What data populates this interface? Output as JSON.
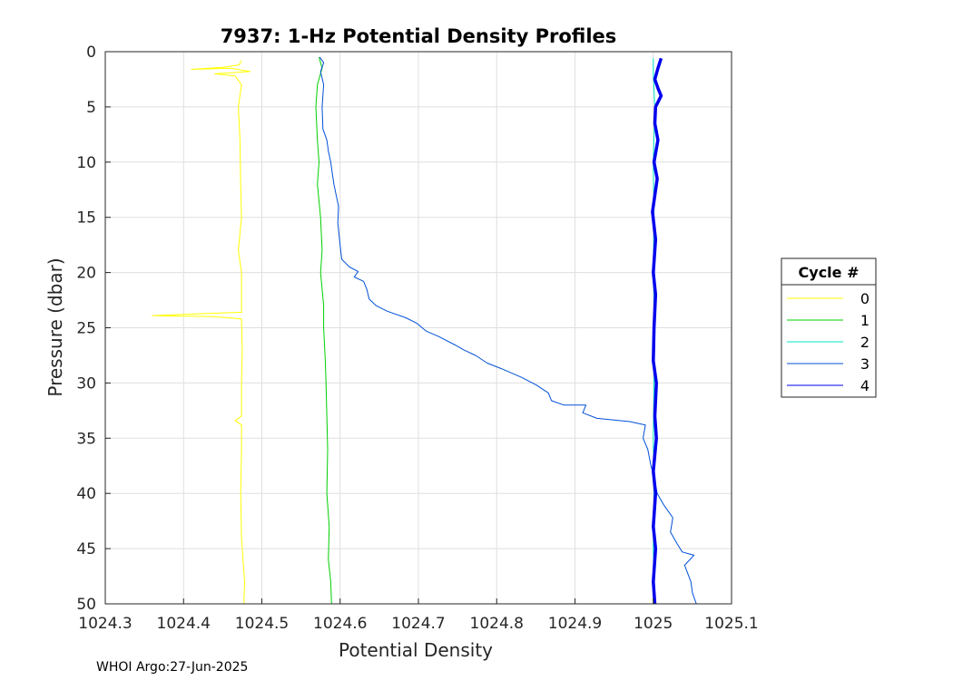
{
  "chart_data": {
    "type": "line",
    "title": "7937: 1-Hz Potential Density Profiles",
    "xlabel": "Potential Density",
    "ylabel": "Pressure (dbar)",
    "xlim": [
      1024.3,
      1025.1
    ],
    "ylim": [
      0,
      50
    ],
    "y_reversed": true,
    "grid": true,
    "x_ticks": [
      "1024.3",
      "1024.4",
      "1024.5",
      "1024.6",
      "1024.7",
      "1024.8",
      "1024.9",
      "1025",
      "1025.1"
    ],
    "y_ticks": [
      "0",
      "5",
      "10",
      "15",
      "20",
      "25",
      "30",
      "35",
      "40",
      "45",
      "50"
    ],
    "legend": {
      "title": "Cycle #",
      "placement": "outside-right"
    },
    "series": [
      {
        "name": "0",
        "color": "#ffff00",
        "points": [
          [
            1024.474,
            0.8
          ],
          [
            1024.471,
            1.2
          ],
          [
            1024.452,
            1.4
          ],
          [
            1024.41,
            1.6
          ],
          [
            1024.46,
            1.5
          ],
          [
            1024.485,
            1.8
          ],
          [
            1024.44,
            2.0
          ],
          [
            1024.466,
            2.2
          ],
          [
            1024.47,
            2.6
          ],
          [
            1024.474,
            3.0
          ],
          [
            1024.47,
            5
          ],
          [
            1024.472,
            8
          ],
          [
            1024.473,
            12
          ],
          [
            1024.474,
            15
          ],
          [
            1024.47,
            18
          ],
          [
            1024.474,
            20
          ],
          [
            1024.474,
            23.6
          ],
          [
            1024.43,
            23.7
          ],
          [
            1024.36,
            23.9
          ],
          [
            1024.44,
            24.0
          ],
          [
            1024.474,
            24.2
          ],
          [
            1024.475,
            27
          ],
          [
            1024.474,
            30
          ],
          [
            1024.474,
            33.0
          ],
          [
            1024.466,
            33.4
          ],
          [
            1024.474,
            33.8
          ],
          [
            1024.474,
            36
          ],
          [
            1024.473,
            40
          ],
          [
            1024.474,
            44
          ],
          [
            1024.476,
            46
          ],
          [
            1024.478,
            48
          ],
          [
            1024.477,
            50
          ]
        ]
      },
      {
        "name": "1",
        "color": "#00d000",
        "points": [
          [
            1024.573,
            0.5
          ],
          [
            1024.577,
            1.5
          ],
          [
            1024.571,
            3
          ],
          [
            1024.569,
            5
          ],
          [
            1024.571,
            8
          ],
          [
            1024.573,
            10
          ],
          [
            1024.571,
            12
          ],
          [
            1024.575,
            15
          ],
          [
            1024.577,
            18
          ],
          [
            1024.575,
            20
          ],
          [
            1024.579,
            23
          ],
          [
            1024.579,
            25
          ],
          [
            1024.581,
            28
          ],
          [
            1024.582,
            30
          ],
          [
            1024.583,
            33
          ],
          [
            1024.584,
            36
          ],
          [
            1024.583,
            40
          ],
          [
            1024.586,
            43
          ],
          [
            1024.585,
            46
          ],
          [
            1024.588,
            48
          ],
          [
            1024.589,
            50
          ]
        ]
      },
      {
        "name": "2",
        "color": "#00e8c8",
        "points": [
          [
            1025.0,
            0.6
          ],
          [
            1025.0,
            2
          ],
          [
            1025.002,
            5
          ],
          [
            1025.0,
            10
          ],
          [
            1025.001,
            15
          ],
          [
            1025.0,
            20
          ],
          [
            1025.002,
            25
          ],
          [
            1025.001,
            30
          ],
          [
            1025.0,
            35
          ],
          [
            1025.001,
            40
          ],
          [
            1025.0,
            45
          ],
          [
            1025.002,
            50
          ]
        ]
      },
      {
        "name": "3",
        "color": "#0050d8",
        "points": [
          [
            1024.574,
            0.5
          ],
          [
            1024.579,
            1.0
          ],
          [
            1024.575,
            1.8
          ],
          [
            1024.579,
            3
          ],
          [
            1024.577,
            5
          ],
          [
            1024.578,
            7
          ],
          [
            1024.583,
            8
          ],
          [
            1024.585,
            9
          ],
          [
            1024.588,
            10
          ],
          [
            1024.59,
            11
          ],
          [
            1024.592,
            12
          ],
          [
            1024.595,
            13
          ],
          [
            1024.598,
            14
          ],
          [
            1024.597,
            15.5
          ],
          [
            1024.6,
            17.5
          ],
          [
            1024.602,
            18.8
          ],
          [
            1024.612,
            19.5
          ],
          [
            1024.623,
            19.9
          ],
          [
            1024.618,
            20.4
          ],
          [
            1024.63,
            20.8
          ],
          [
            1024.634,
            21.5
          ],
          [
            1024.637,
            22.4
          ],
          [
            1024.646,
            23.0
          ],
          [
            1024.66,
            23.5
          ],
          [
            1024.684,
            24.1
          ],
          [
            1024.698,
            24.6
          ],
          [
            1024.71,
            25.3
          ],
          [
            1024.726,
            25.8
          ],
          [
            1024.748,
            26.6
          ],
          [
            1024.758,
            27.0
          ],
          [
            1024.773,
            27.5
          ],
          [
            1024.788,
            28.2
          ],
          [
            1024.806,
            28.7
          ],
          [
            1024.832,
            29.5
          ],
          [
            1024.851,
            30.2
          ],
          [
            1024.866,
            30.9
          ],
          [
            1024.87,
            31.6
          ],
          [
            1024.886,
            32.0
          ],
          [
            1024.914,
            32.0
          ],
          [
            1024.91,
            32.7
          ],
          [
            1024.928,
            33.2
          ],
          [
            1024.97,
            33.5
          ],
          [
            1024.99,
            33.8
          ],
          [
            1024.987,
            35
          ],
          [
            1024.993,
            36
          ],
          [
            1024.997,
            37.5
          ],
          [
            1025.001,
            38.5
          ],
          [
            1025.005,
            40
          ],
          [
            1025.013,
            41
          ],
          [
            1025.025,
            42.2
          ],
          [
            1025.022,
            43.5
          ],
          [
            1025.03,
            44.5
          ],
          [
            1025.037,
            45.3
          ],
          [
            1025.052,
            45.6
          ],
          [
            1025.04,
            46.5
          ],
          [
            1025.048,
            48
          ],
          [
            1025.05,
            49
          ],
          [
            1025.055,
            50
          ]
        ]
      },
      {
        "name": "4",
        "color": "#0000ee",
        "points": [
          [
            1025.01,
            0.6
          ],
          [
            1025.006,
            1.5
          ],
          [
            1025.002,
            2.5
          ],
          [
            1025.006,
            3.3
          ],
          [
            1025.01,
            4
          ],
          [
            1025.003,
            5
          ],
          [
            1025.002,
            6.5
          ],
          [
            1025.006,
            8
          ],
          [
            1025.001,
            10
          ],
          [
            1025.005,
            11.5
          ],
          [
            1024.999,
            14.5
          ],
          [
            1025.003,
            17
          ],
          [
            1025.0,
            20
          ],
          [
            1025.003,
            22
          ],
          [
            1025.001,
            25
          ],
          [
            1025.0,
            28
          ],
          [
            1025.004,
            30
          ],
          [
            1025.002,
            33
          ],
          [
            1025.004,
            35
          ],
          [
            1025.0,
            38
          ],
          [
            1025.003,
            40
          ],
          [
            1025.0,
            43
          ],
          [
            1025.003,
            45
          ],
          [
            1025.0,
            48
          ],
          [
            1025.002,
            50
          ]
        ]
      }
    ]
  },
  "footer": {
    "credit": "WHOI Argo:27-Jun-2025"
  }
}
